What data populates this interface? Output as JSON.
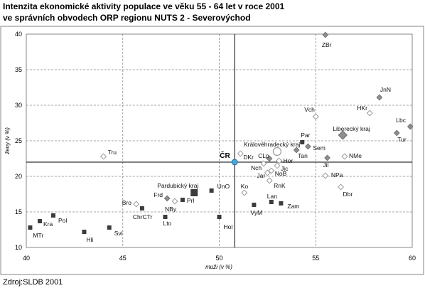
{
  "source": "Zdroj:SLDB 2001",
  "chart_data": {
    "type": "scatter",
    "title": "Intenzita ekonomické aktivity populace ve věku 55 - 64 let v roce 2001",
    "subtitle": "ve správních obvodech ORP regionu NUTS 2 - Severovýchod",
    "xlabel": "muži (v %)",
    "ylabel": "ženy (v %)",
    "xlim": [
      40,
      60
    ],
    "ylim": [
      10,
      40
    ],
    "x_ticks": [
      40,
      45,
      50,
      55,
      60
    ],
    "y_ticks": [
      10,
      15,
      20,
      25,
      30,
      35,
      40
    ],
    "grid": true,
    "reference_lines": {
      "x": 50.8,
      "y": 22.0
    },
    "colors": {
      "square": "#3c3c3c",
      "diamond": "#8e8e8e",
      "diamond_stroke": "#6a6a6a",
      "open_stroke": "#9a9a9a",
      "reference_point": "#49a6dc",
      "reference_point_stroke": "#1f6fa3",
      "reference_lines": "#000000",
      "grid": "#8a8a8a",
      "axis": "#7a7a7a"
    },
    "points": [
      {
        "label": "ZBr",
        "x": 55.5,
        "y": 39.9,
        "marker": "diamond"
      },
      {
        "label": "JnN",
        "x": 58.3,
        "y": 31.1,
        "marker": "diamond"
      },
      {
        "label": "HKr",
        "x": 57.8,
        "y": 28.9,
        "marker": "open"
      },
      {
        "label": "Vch",
        "x": 55.0,
        "y": 28.4,
        "marker": "open"
      },
      {
        "label": "Lbc",
        "x": 59.9,
        "y": 27.0,
        "marker": "diamond"
      },
      {
        "label": "Tur",
        "x": 59.2,
        "y": 26.1,
        "marker": "diamond"
      },
      {
        "label": "Liberecký kraj",
        "x": 56.4,
        "y": 25.8,
        "marker": "diamond-big"
      },
      {
        "label": "Par",
        "x": 54.3,
        "y": 24.8,
        "marker": "square"
      },
      {
        "label": "Sem",
        "x": 54.6,
        "y": 24.2,
        "marker": "diamond"
      },
      {
        "label": "Tan",
        "x": 54.0,
        "y": 23.7,
        "marker": "diamond"
      },
      {
        "label": "Královéhradecký kraj",
        "x": 53.0,
        "y": 23.5,
        "marker": "circle-big"
      },
      {
        "label": "DKr",
        "x": 51.1,
        "y": 23.2,
        "marker": "open"
      },
      {
        "label": "CLp",
        "x": 52.6,
        "y": 22.5,
        "marker": "diamond"
      },
      {
        "label": "Hor",
        "x": 53.1,
        "y": 22.2,
        "marker": "open"
      },
      {
        "label": "Nch",
        "x": 52.3,
        "y": 21.8,
        "marker": "open"
      },
      {
        "label": "Jic",
        "x": 53.0,
        "y": 21.5,
        "marker": "open"
      },
      {
        "label": "NoB",
        "x": 52.7,
        "y": 20.8,
        "marker": "open"
      },
      {
        "label": "Jar",
        "x": 52.5,
        "y": 20.5,
        "marker": "open"
      },
      {
        "label": "RnK",
        "x": 52.6,
        "y": 19.4,
        "marker": "open"
      },
      {
        "label": "Jil",
        "x": 55.6,
        "y": 22.6,
        "marker": "diamond"
      },
      {
        "label": "NMe",
        "x": 56.5,
        "y": 22.8,
        "marker": "open"
      },
      {
        "label": "NPa",
        "x": 55.5,
        "y": 20.1,
        "marker": "open"
      },
      {
        "label": "Dbr",
        "x": 56.3,
        "y": 18.5,
        "marker": "open"
      },
      {
        "label": "Tru",
        "x": 44.0,
        "y": 22.8,
        "marker": "open"
      },
      {
        "label": "Bro",
        "x": 45.7,
        "y": 16.1,
        "marker": "open"
      },
      {
        "label": "ChrCTr",
        "x": 46.0,
        "y": 15.5,
        "marker": "square"
      },
      {
        "label": "Frd",
        "x": 47.3,
        "y": 16.9,
        "marker": "diamond"
      },
      {
        "label": "NBy",
        "x": 47.7,
        "y": 16.5,
        "marker": "open"
      },
      {
        "label": "Prl",
        "x": 48.1,
        "y": 16.7,
        "marker": "square"
      },
      {
        "label": "Lto",
        "x": 47.2,
        "y": 14.3,
        "marker": "square"
      },
      {
        "label": "Pardubický kraj",
        "x": 48.7,
        "y": 17.7,
        "marker": "square-big"
      },
      {
        "label": "UnO",
        "x": 49.6,
        "y": 18.0,
        "marker": "square"
      },
      {
        "label": "Hol",
        "x": 50.0,
        "y": 14.3,
        "marker": "square"
      },
      {
        "label": "Ko",
        "x": 51.3,
        "y": 17.7,
        "marker": "open"
      },
      {
        "label": "VyM",
        "x": 51.8,
        "y": 16.0,
        "marker": "square"
      },
      {
        "label": "Lan",
        "x": 52.7,
        "y": 16.4,
        "marker": "square"
      },
      {
        "label": "Zam",
        "x": 53.2,
        "y": 16.2,
        "marker": "square"
      },
      {
        "label": "MTr",
        "x": 40.2,
        "y": 12.8,
        "marker": "square"
      },
      {
        "label": "Kra",
        "x": 40.7,
        "y": 13.7,
        "marker": "square"
      },
      {
        "label": "Pol",
        "x": 41.4,
        "y": 14.5,
        "marker": "square"
      },
      {
        "label": "Hli",
        "x": 43.0,
        "y": 12.2,
        "marker": "square"
      },
      {
        "label": "Svi",
        "x": 44.3,
        "y": 12.8,
        "marker": "square"
      },
      {
        "label": "ČR",
        "x": 50.8,
        "y": 22.0,
        "marker": "dot"
      }
    ]
  }
}
